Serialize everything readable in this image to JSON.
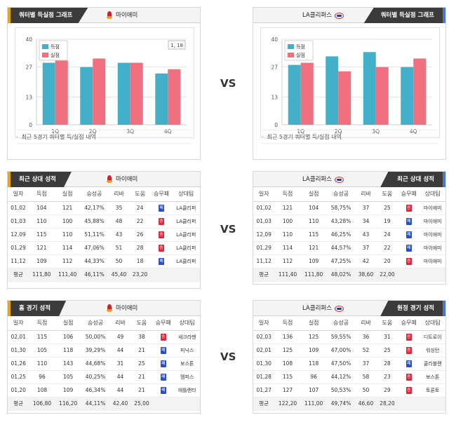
{
  "chart_title": "쿼터별 득실점 그래프",
  "vs": "VS",
  "home": {
    "name": "마이애미"
  },
  "away": {
    "name": "LA클리퍼스"
  },
  "chart_note": "최근 5경기 쿼터별 득/실점 내역",
  "chart_data": [
    {
      "type": "bar",
      "categories": [
        "1Q",
        "2Q",
        "3Q",
        "4Q"
      ],
      "series": [
        {
          "name": "득점",
          "color": "#42b0c8",
          "values": [
            29,
            27,
            29,
            24
          ]
        },
        {
          "name": "실점",
          "color": "#f07080",
          "values": [
            30,
            31,
            29,
            26
          ]
        }
      ],
      "yticks": [
        "40",
        "27",
        "13",
        "0"
      ],
      "ylim": [
        0,
        40
      ],
      "grid": true,
      "legend": "top-left",
      "annotation": "1, 18"
    },
    {
      "type": "bar",
      "categories": [
        "1Q",
        "2Q",
        "3Q",
        "4Q"
      ],
      "series": [
        {
          "name": "득점",
          "color": "#42b0c8",
          "values": [
            28,
            32,
            34,
            27
          ]
        },
        {
          "name": "실점",
          "color": "#f07080",
          "values": [
            29,
            25,
            27,
            31
          ]
        }
      ],
      "yticks": [
        "40",
        "27",
        "13",
        "0"
      ],
      "ylim": [
        0,
        40
      ],
      "grid": true,
      "legend": "top-left"
    }
  ],
  "recent_title": "최근 상대 성적",
  "home_title": "홈 경기 성적",
  "away_title": "원정 경기 성적",
  "columns": [
    "일자",
    "득점",
    "실점",
    "승성공",
    "리바",
    "도움",
    "승무패",
    "상대팀"
  ],
  "tables": {
    "home_recent": {
      "rows": [
        {
          "date": "01,02",
          "pts": "104",
          "opp_pts": "121",
          "fg": "42,17%",
          "reb": "35",
          "ast": "24",
          "res": "패",
          "opp": "LA클리퍼"
        },
        {
          "date": "01,03",
          "pts": "110",
          "opp_pts": "100",
          "fg": "45,88%",
          "reb": "48",
          "ast": "22",
          "res": "승",
          "opp": "LA클리퍼"
        },
        {
          "date": "12,09",
          "pts": "115",
          "opp_pts": "110",
          "fg": "51,11%",
          "reb": "43",
          "ast": "26",
          "res": "승",
          "opp": "LA클리퍼"
        },
        {
          "date": "01,29",
          "pts": "121",
          "opp_pts": "114",
          "fg": "47,06%",
          "reb": "51",
          "ast": "28",
          "res": "승",
          "opp": "LA클리퍼"
        },
        {
          "date": "11,12",
          "pts": "109",
          "opp_pts": "112",
          "fg": "44,33%",
          "reb": "50",
          "ast": "18",
          "res": "패",
          "opp": "LA클리퍼"
        }
      ],
      "avg": {
        "label": "평균",
        "pts": "111,80",
        "opp_pts": "111,40",
        "fg": "46,11%",
        "reb": "45,40",
        "ast": "23,20"
      }
    },
    "away_recent": {
      "rows": [
        {
          "date": "01,02",
          "pts": "121",
          "opp_pts": "104",
          "fg": "58,75%",
          "reb": "37",
          "ast": "25",
          "res": "승",
          "opp": "마이애미"
        },
        {
          "date": "01,03",
          "pts": "100",
          "opp_pts": "110",
          "fg": "43,28%",
          "reb": "34",
          "ast": "19",
          "res": "패",
          "opp": "마이애미"
        },
        {
          "date": "12,09",
          "pts": "110",
          "opp_pts": "115",
          "fg": "46,25%",
          "reb": "43",
          "ast": "24",
          "res": "패",
          "opp": "마이애미"
        },
        {
          "date": "01,29",
          "pts": "114",
          "opp_pts": "121",
          "fg": "44,57%",
          "reb": "37",
          "ast": "22",
          "res": "패",
          "opp": "마이애미"
        },
        {
          "date": "11,12",
          "pts": "112",
          "opp_pts": "109",
          "fg": "47,25%",
          "reb": "42",
          "ast": "20",
          "res": "승",
          "opp": "마이애미"
        }
      ],
      "avg": {
        "label": "평균",
        "pts": "111,40",
        "opp_pts": "111,80",
        "fg": "48,02%",
        "reb": "38,60",
        "ast": "22,00"
      }
    },
    "home_games": {
      "rows": [
        {
          "date": "02,01",
          "pts": "115",
          "opp_pts": "106",
          "fg": "50,00%",
          "reb": "49",
          "ast": "38",
          "res": "승",
          "opp": "새크라멘"
        },
        {
          "date": "01,30",
          "pts": "105",
          "opp_pts": "118",
          "fg": "39,29%",
          "reb": "44",
          "ast": "21",
          "res": "패",
          "opp": "피닉스"
        },
        {
          "date": "01,26",
          "pts": "110",
          "opp_pts": "143",
          "fg": "44,68%",
          "reb": "31",
          "ast": "25",
          "res": "패",
          "opp": "보스톤"
        },
        {
          "date": "01,25",
          "pts": "96",
          "opp_pts": "105",
          "fg": "40,25%",
          "reb": "44",
          "ast": "21",
          "res": "패",
          "opp": "멤피스"
        },
        {
          "date": "01,20",
          "pts": "108",
          "opp_pts": "109",
          "fg": "46,34%",
          "reb": "44",
          "ast": "21",
          "res": "패",
          "opp": "애틀랜타"
        }
      ],
      "avg": {
        "label": "평균",
        "pts": "106,80",
        "opp_pts": "116,20",
        "fg": "44,11%",
        "reb": "42,40",
        "ast": "25,00"
      }
    },
    "away_games": {
      "rows": [
        {
          "date": "02,03",
          "pts": "136",
          "opp_pts": "125",
          "fg": "59,55%",
          "reb": "36",
          "ast": "31",
          "res": "승",
          "opp": "디트로이"
        },
        {
          "date": "02,01",
          "pts": "125",
          "opp_pts": "109",
          "fg": "47,00%",
          "reb": "52",
          "ast": "25",
          "res": "승",
          "opp": "워싱턴"
        },
        {
          "date": "01,30",
          "pts": "108",
          "opp_pts": "118",
          "fg": "47,50%",
          "reb": "37",
          "ast": "28",
          "res": "패",
          "opp": "클리블랜"
        },
        {
          "date": "01,28",
          "pts": "115",
          "opp_pts": "96",
          "fg": "44,12%",
          "reb": "58",
          "ast": "23",
          "res": "승",
          "opp": "보스톤"
        },
        {
          "date": "01,27",
          "pts": "127",
          "opp_pts": "107",
          "fg": "50,53%",
          "reb": "50",
          "ast": "29",
          "res": "승",
          "opp": "토론토"
        }
      ],
      "avg": {
        "label": "평균",
        "pts": "122,20",
        "opp_pts": "111,00",
        "fg": "49,74%",
        "reb": "46,60",
        "ast": "28,20"
      }
    }
  }
}
